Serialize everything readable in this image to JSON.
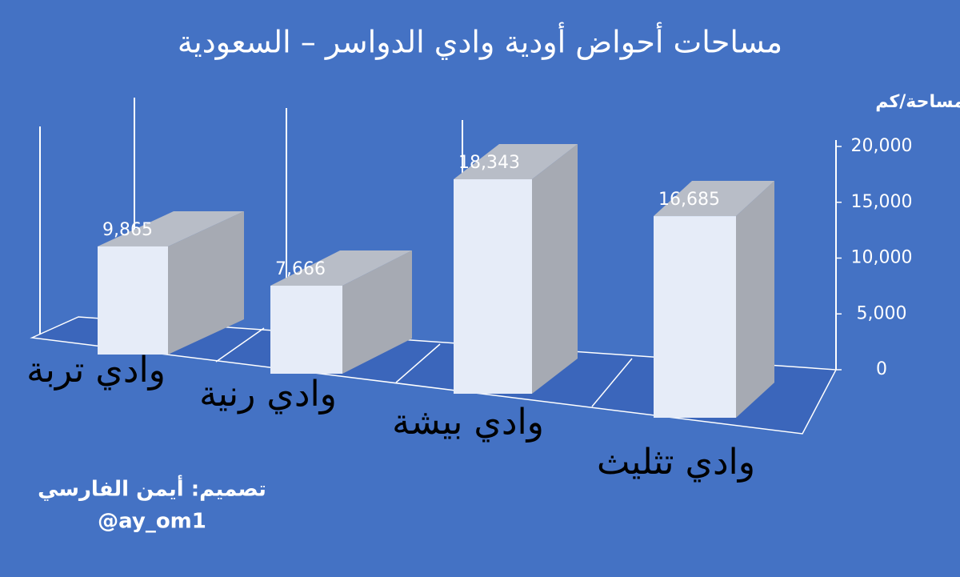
{
  "chart_data": {
    "type": "bar3d",
    "title": "مساحات أحواض أودية وادي الدواسر – السعودية",
    "y_label": "مساحة/كم",
    "categories": [
      "وادي تربة",
      "وادي رنية",
      "وادي بيشة",
      "وادي تثليث"
    ],
    "values": [
      9865,
      7666,
      18343,
      16685
    ],
    "value_labels": [
      "9,865",
      "7,666",
      "18,343",
      "16,685"
    ],
    "color": "#e6ecf8",
    "ylim": [
      0,
      20000
    ],
    "yticks": [
      0,
      {
        "value": 5000,
        "label": "5,000"
      },
      {
        "value": 10000,
        "label": "10,000"
      },
      {
        "value": 15000,
        "label": "15,000"
      },
      {
        "value": 20000,
        "label": "20,000"
      }
    ]
  },
  "credits": {
    "designer": "تصميم: أيمن الفارسي",
    "handle": "@ay_om1"
  }
}
